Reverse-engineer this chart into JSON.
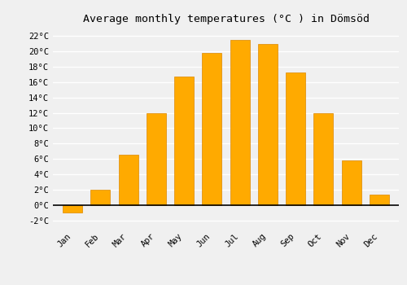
{
  "title": "Average monthly temperatures (°C ) in Dömsöd",
  "months": [
    "Jan",
    "Feb",
    "Mar",
    "Apr",
    "May",
    "Jun",
    "Jul",
    "Aug",
    "Sep",
    "Oct",
    "Nov",
    "Dec"
  ],
  "values": [
    -1.0,
    2.0,
    6.5,
    12.0,
    16.7,
    19.8,
    21.5,
    21.0,
    17.3,
    12.0,
    5.8,
    1.3
  ],
  "bar_color": "#FFAA00",
  "bar_edge_color": "#DD8800",
  "background_color": "#F0F0F0",
  "grid_color": "#FFFFFF",
  "ylim": [
    -3,
    23
  ],
  "yticks": [
    0,
    2,
    4,
    6,
    8,
    10,
    12,
    14,
    16,
    18,
    20,
    22
  ],
  "title_fontsize": 9.5,
  "tick_fontsize": 7.5,
  "fig_width": 5.0,
  "fig_height": 3.5,
  "dpi": 100
}
